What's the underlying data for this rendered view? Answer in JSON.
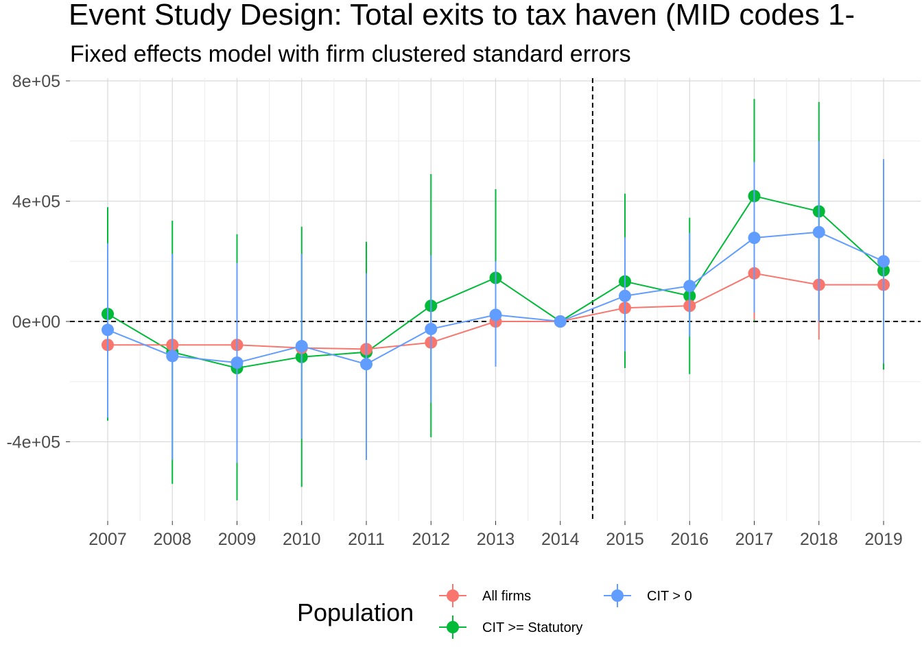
{
  "chart_data": {
    "type": "line",
    "title": "Event Study Design: Total exits to tax haven (MID codes 1-",
    "subtitle": "Fixed effects model with firm clustered standard errors",
    "xlabel": "",
    "ylabel": "",
    "x": [
      "2007",
      "2008",
      "2009",
      "2010",
      "2011",
      "2012",
      "2013",
      "2014",
      "2015",
      "2016",
      "2017",
      "2018",
      "2019"
    ],
    "ylim": [
      -660000,
      800000
    ],
    "yticks": [
      -400000,
      0,
      400000,
      800000
    ],
    "ytick_labels": [
      "-4e+05",
      "0e+00",
      "4e+05",
      "8e+05"
    ],
    "grid": true,
    "reference_lines": {
      "y": 0,
      "x_between": [
        "2014",
        "2015"
      ]
    },
    "legend": {
      "title": "Population",
      "placement": "bottom"
    },
    "series": [
      {
        "name": "All firms",
        "color": "#F8766D",
        "values": [
          -78000,
          -78000,
          -78000,
          -88000,
          -92000,
          -70000,
          0,
          0,
          45000,
          52000,
          160000,
          122000,
          122000
        ],
        "lower": [
          -78000,
          -78000,
          -78000,
          -88000,
          -92000,
          -70000,
          0,
          0,
          45000,
          52000,
          5000,
          -60000,
          122000
        ],
        "upper": [
          -78000,
          -78000,
          -78000,
          -88000,
          -92000,
          -70000,
          0,
          0,
          45000,
          52000,
          160000,
          122000,
          122000
        ]
      },
      {
        "name": "CIT >= Statutory",
        "color": "#00BA38",
        "values": [
          25000,
          -102000,
          -155000,
          -118000,
          -102000,
          52000,
          145000,
          0,
          133000,
          85000,
          417000,
          366000,
          170000
        ],
        "lower": [
          -330000,
          -540000,
          -595000,
          -550000,
          -460000,
          -385000,
          -140000,
          0,
          -155000,
          -175000,
          0,
          0,
          -160000
        ],
        "upper": [
          380000,
          335000,
          290000,
          315000,
          265000,
          490000,
          440000,
          0,
          425000,
          345000,
          740000,
          730000,
          530000
        ]
      },
      {
        "name": "CIT > 0",
        "color": "#619CFF",
        "values": [
          -28000,
          -115000,
          -137000,
          -82000,
          -142000,
          -25000,
          22000,
          0,
          85000,
          118000,
          278000,
          297000,
          200000
        ],
        "lower": [
          -320000,
          -460000,
          -470000,
          -390000,
          -460000,
          -270000,
          -150000,
          0,
          -100000,
          -50000,
          30000,
          0,
          -140000
        ],
        "upper": [
          260000,
          225000,
          195000,
          225000,
          160000,
          220000,
          200000,
          0,
          280000,
          295000,
          530000,
          600000,
          540000
        ]
      }
    ]
  }
}
